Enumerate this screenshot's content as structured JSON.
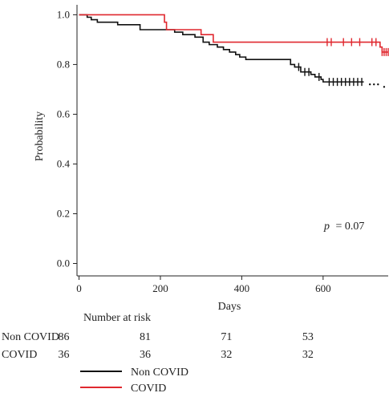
{
  "chart_data": {
    "type": "line",
    "subtype": "kaplan-meier",
    "xlabel": "Days",
    "ylabel": "Probability",
    "xlim": [
      -5,
      760
    ],
    "ylim": [
      -0.05,
      1.04
    ],
    "x_ticks": [
      "0",
      "200",
      "400",
      "600"
    ],
    "x_tick_values": [
      0,
      200,
      400,
      600
    ],
    "y_ticks": [
      "0.0",
      "0.2",
      "0.4",
      "0.6",
      "0.8",
      "1.0"
    ],
    "y_tick_values": [
      0.0,
      0.2,
      0.4,
      0.6,
      0.8,
      1.0
    ],
    "annotation": {
      "p_symbol": "p",
      "p_value": "= 0.07"
    },
    "series": [
      {
        "name": "Non COVID",
        "color": "#111111",
        "steps": [
          [
            0,
            1.0
          ],
          [
            20,
            0.99
          ],
          [
            30,
            0.98
          ],
          [
            45,
            0.97
          ],
          [
            95,
            0.96
          ],
          [
            150,
            0.94
          ],
          [
            235,
            0.93
          ],
          [
            255,
            0.92
          ],
          [
            285,
            0.91
          ],
          [
            305,
            0.89
          ],
          [
            320,
            0.88
          ],
          [
            340,
            0.87
          ],
          [
            355,
            0.86
          ],
          [
            370,
            0.85
          ],
          [
            385,
            0.84
          ],
          [
            395,
            0.83
          ],
          [
            410,
            0.82
          ],
          [
            520,
            0.8
          ],
          [
            530,
            0.79
          ],
          [
            545,
            0.77
          ],
          [
            570,
            0.76
          ],
          [
            580,
            0.75
          ],
          [
            595,
            0.74
          ],
          [
            600,
            0.73
          ],
          [
            700,
            0.73
          ]
        ],
        "censored": [
          540,
          555,
          565,
          590,
          615,
          625,
          635,
          645,
          655,
          665,
          675,
          685,
          695
        ],
        "tail_points": [
          [
            715,
            0.72
          ],
          [
            725,
            0.72
          ],
          [
            735,
            0.72
          ],
          [
            750,
            0.71
          ]
        ]
      },
      {
        "name": "COVID",
        "color": "#e0282f",
        "steps": [
          [
            0,
            1.0
          ],
          [
            210,
            0.97
          ],
          [
            215,
            0.94
          ],
          [
            300,
            0.92
          ],
          [
            330,
            0.89
          ],
          [
            735,
            0.89
          ],
          [
            740,
            0.87
          ],
          [
            745,
            0.85
          ],
          [
            760,
            0.85
          ]
        ],
        "censored": [
          610,
          620,
          650,
          670,
          690,
          720,
          730,
          745,
          750,
          755,
          760
        ]
      }
    ],
    "risk_table": {
      "title": "Number at risk",
      "times": [
        0,
        200,
        400,
        600
      ],
      "rows": [
        {
          "label": "Non COVID",
          "values": [
            "86",
            "81",
            "71",
            "53"
          ]
        },
        {
          "label": "COVID",
          "values": [
            "36",
            "36",
            "32",
            "32"
          ]
        }
      ]
    },
    "legend": {
      "position": "bottom-left"
    }
  }
}
